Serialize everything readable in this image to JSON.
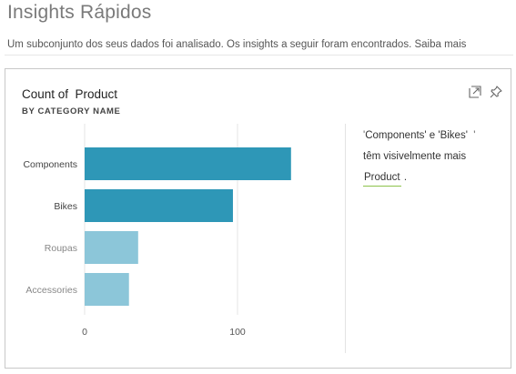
{
  "header": {
    "title": "Insights Rápidos",
    "subtitle": "Um subconjunto dos seus dados foi analisado. Os insights a seguir foram encontrados.",
    "learn_more": "Saiba mais"
  },
  "card": {
    "title": "Count of  Product",
    "subtitle": "BY CATEGORY NAME",
    "icons": [
      "expand-icon",
      "pin-icon"
    ]
  },
  "chart_data": {
    "type": "bar",
    "orientation": "horizontal",
    "categories": [
      "Components",
      "Bikes",
      "Roupas",
      "Accessories"
    ],
    "values": [
      135,
      97,
      35,
      29
    ],
    "highlighted": [
      true,
      true,
      false,
      false
    ],
    "xticks": [
      "0",
      "100"
    ],
    "xlim": [
      0,
      140
    ],
    "grid": true,
    "colors": {
      "highlight": "#2e97b7",
      "muted": "#8cc6d9"
    }
  },
  "insight": {
    "quote_open": "'",
    "line1_a": "Components' e 'Bikes'",
    "quote_close": "'",
    "line2": "têm visivelmente mais",
    "field": "Product",
    "period": "."
  }
}
